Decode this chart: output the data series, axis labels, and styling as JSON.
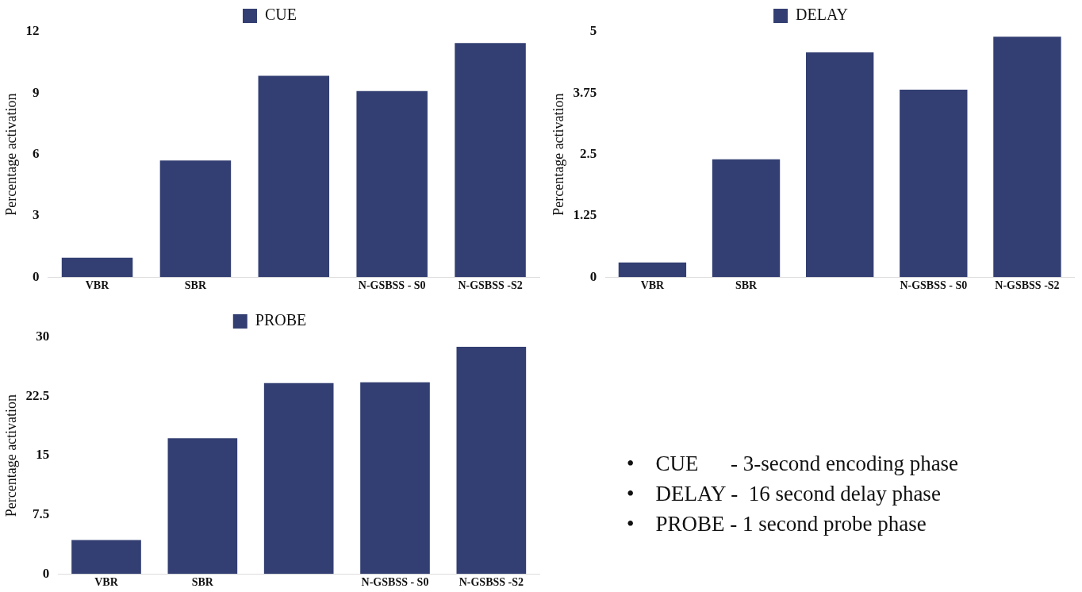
{
  "chart_data": [
    {
      "type": "bar",
      "categories": [
        "VBR",
        "SBR",
        null,
        "N-GSBSS - S0",
        "N-GSBSS -S2"
      ],
      "ylabel": "Percentage activation",
      "legend": "top",
      "grid": false,
      "ylim": [
        0,
        12
      ],
      "yticks": [
        0,
        3,
        6,
        9,
        12
      ],
      "series": [
        {
          "name": "CUE",
          "color": "#333f72",
          "values": [
            0.95,
            5.7,
            9.85,
            9.1,
            11.45
          ]
        }
      ]
    },
    {
      "type": "bar",
      "categories": [
        "VBR",
        "SBR",
        null,
        "N-GSBSS - S0",
        "N-GSBSS -S2"
      ],
      "ylabel": "Percentage activation",
      "legend": "top",
      "grid": false,
      "ylim": [
        0,
        5
      ],
      "yticks": [
        0,
        1.25,
        2.5,
        3.75,
        5
      ],
      "series": [
        {
          "name": "DELAY",
          "color": "#333f72",
          "values": [
            0.3,
            2.4,
            4.58,
            3.82,
            4.9
          ]
        }
      ]
    },
    {
      "type": "bar",
      "categories": [
        "VBR",
        "SBR",
        null,
        "N-GSBSS - S0",
        "N-GSBSS -S2"
      ],
      "ylabel": "Percentage activation",
      "legend": "top",
      "grid": false,
      "ylim": [
        0,
        30
      ],
      "yticks": [
        0,
        7.5,
        15,
        22.5,
        30
      ],
      "series": [
        {
          "name": "PROBE",
          "color": "#333f72",
          "values": [
            4.3,
            17.2,
            24.2,
            24.3,
            28.8
          ]
        }
      ]
    },
    {
      "type": "other",
      "annotations": [
        "•    CUE      - 3-second encoding phase",
        "•    DELAY -  16 second delay phase",
        "•    PROBE - 1 second probe phase"
      ]
    }
  ]
}
